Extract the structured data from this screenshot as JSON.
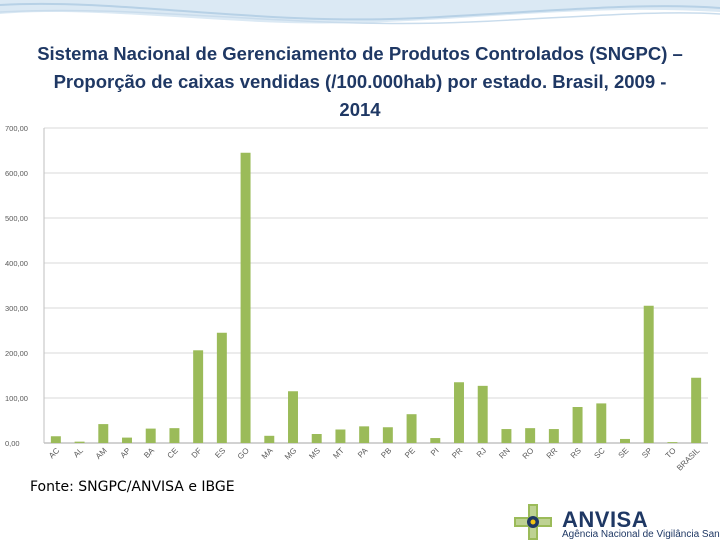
{
  "header": {
    "title_line1": "Sistema Nacional de Gerenciamento de Produtos Controlados (SNGPC) –",
    "title_line2": "Proporção de caixas vendidas (/100.000hab) por estado. Brasil, 2009 -",
    "title_line3": "2014"
  },
  "footer": {
    "source": "Fonte: SNGPC/ANVISA e IBGE",
    "logo_name": "ANVISA",
    "logo_subtitle": "Agência Nacional de Vigilância Sanitária"
  },
  "colors": {
    "bar": "#9bbb59",
    "title": "#1f3864",
    "grid": "#d9d9d9",
    "axis_text": "#595959"
  },
  "chart_data": {
    "type": "bar",
    "title": "",
    "xlabel": "",
    "ylabel": "",
    "ylim": [
      0,
      700
    ],
    "yticks": [
      0,
      100,
      200,
      300,
      400,
      500,
      600,
      700
    ],
    "ytick_labels": [
      "0,00",
      "100,00",
      "200,00",
      "300,00",
      "400,00",
      "500,00",
      "600,00",
      "700,00"
    ],
    "grid": true,
    "legend": "none",
    "categories": [
      "AC",
      "AL",
      "AM",
      "AP",
      "BA",
      "CE",
      "DF",
      "ES",
      "GO",
      "MA",
      "MG",
      "MS",
      "MT",
      "PA",
      "PB",
      "PE",
      "PI",
      "PR",
      "RJ",
      "RN",
      "RO",
      "RR",
      "RS",
      "SC",
      "SE",
      "SP",
      "TO",
      "BRASIL"
    ],
    "values": [
      15,
      3,
      42,
      12,
      32,
      33,
      206,
      245,
      645,
      16,
      115,
      20,
      30,
      37,
      35,
      64,
      11,
      135,
      127,
      31,
      33,
      31,
      80,
      88,
      9,
      305,
      2,
      145
    ]
  }
}
